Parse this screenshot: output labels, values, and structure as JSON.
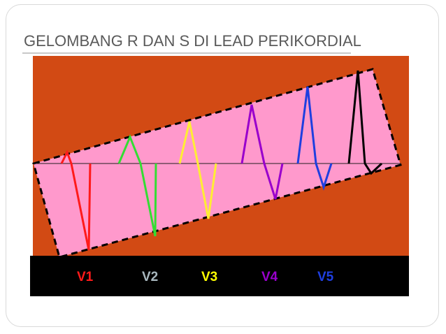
{
  "slide": {
    "title": "GELOMBANG R DAN S DI LEAD PERIKORDIAL"
  },
  "colors": {
    "background_panel": "#d24a14",
    "highlight_band": "#ff99cc",
    "label_bar": "#000000",
    "baseline": "#202020"
  },
  "leads": [
    {
      "label": "V1",
      "color": "#ff1a1a"
    },
    {
      "label": "V2",
      "color": "#a9b8bf"
    },
    {
      "label": "V3",
      "color": "#ffff00"
    },
    {
      "label": "V4",
      "color": "#9900cc"
    },
    {
      "label": "V5",
      "color": "#1f3fe0"
    }
  ],
  "waves": [
    {
      "name": "wave-v1",
      "color": "#ff1a1a"
    },
    {
      "name": "wave-v2",
      "color": "#33dd33"
    },
    {
      "name": "wave-v3",
      "color": "#ffee33"
    },
    {
      "name": "wave-v4",
      "color": "#9900cc"
    },
    {
      "name": "wave-v5",
      "color": "#1f3fe0"
    },
    {
      "name": "wave-v6",
      "color": "#000000"
    }
  ]
}
